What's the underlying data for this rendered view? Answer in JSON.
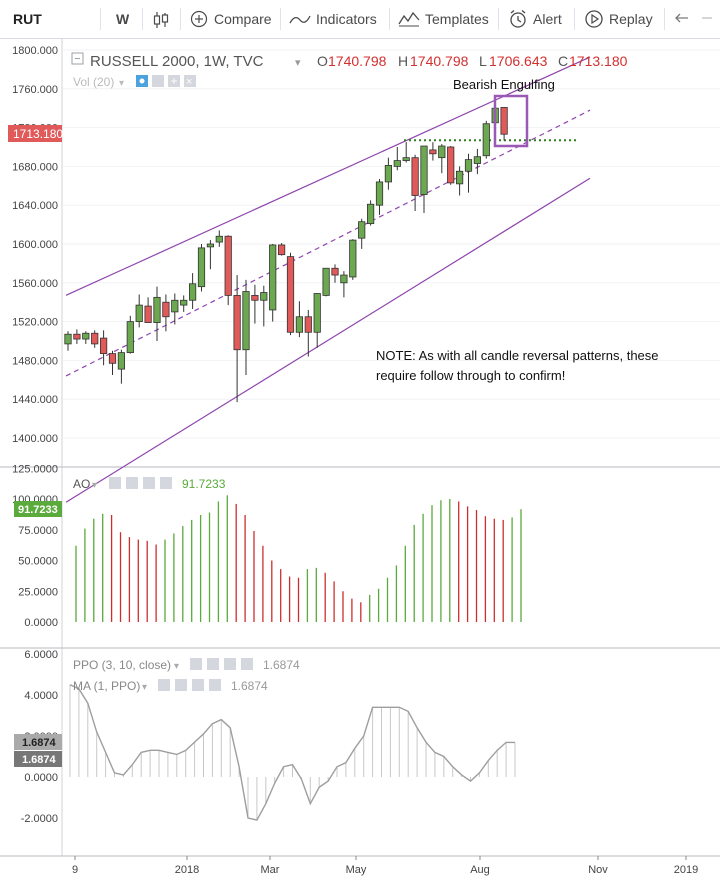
{
  "toolbar": {
    "symbol": "RUT",
    "interval": "W",
    "compare": "Compare",
    "indicators": "Indicators",
    "templates": "Templates",
    "alert": "Alert",
    "replay": "Replay"
  },
  "legend": {
    "title": "RUSSELL 2000, 1W, TVC",
    "o_label": "O",
    "o_value": "1740.798",
    "h_label": "H",
    "h_value": "1740.798",
    "l_label": "L",
    "l_value": "1706.643",
    "c_label": "C",
    "c_value": "1713.180",
    "vol": "Vol (20)"
  },
  "price_tag": "1713.180",
  "annotations": {
    "pattern": "Bearish Engulfing",
    "note_line1": "NOTE: As with all candle reversal patterns, these",
    "note_line2": "require follow through to confirm!"
  },
  "ao": {
    "label": "AO",
    "value": "91.7233",
    "tag": "91.7233"
  },
  "ppo": {
    "label": "PPO (3, 10, close)",
    "value": "1.6874",
    "ma_label": "MA (1, PPO)",
    "ma_value": "1.6874",
    "tag1": "1.6874",
    "tag2": "1.6874"
  },
  "colors": {
    "up": "#6ba84f",
    "down": "#e05a5a",
    "channel": "#8e44ad",
    "ao_up": "#5aaa3c",
    "ao_down": "#cc2e2e",
    "ppo_line": "#9e9e9e",
    "highlight": "#9b59b6",
    "support": "#2e7d1f"
  },
  "chart_data": [
    {
      "type": "candlestick",
      "title": "RUSSELL 2000, 1W, TVC",
      "ylim": [
        1380,
        1800
      ],
      "yticks": [
        "1800.000",
        "1760.000",
        "1720.000",
        "1680.000",
        "1640.000",
        "1600.000",
        "1560.000",
        "1520.000",
        "1480.000",
        "1440.000",
        "1400.000"
      ],
      "xticks": [
        "9",
        "2018",
        "Mar",
        "May",
        "Aug",
        "Nov",
        "2019"
      ],
      "candles": [
        [
          1497,
          1510,
          1490,
          1507
        ],
        [
          1507,
          1512,
          1497,
          1502
        ],
        [
          1502,
          1510,
          1497,
          1508
        ],
        [
          1508,
          1511,
          1493,
          1497
        ],
        [
          1503,
          1511,
          1475,
          1487
        ],
        [
          1487,
          1490,
          1465,
          1477
        ],
        [
          1471,
          1491,
          1456,
          1488
        ],
        [
          1488,
          1526,
          1487,
          1520
        ],
        [
          1520,
          1548,
          1514,
          1537
        ],
        [
          1536,
          1545,
          1519,
          1519
        ],
        [
          1519,
          1556,
          1500,
          1545
        ],
        [
          1540,
          1548,
          1510,
          1525
        ],
        [
          1530,
          1549,
          1517,
          1542
        ],
        [
          1537,
          1547,
          1530,
          1542
        ],
        [
          1542,
          1570,
          1533,
          1559
        ],
        [
          1556,
          1600,
          1551,
          1596
        ],
        [
          1597,
          1604,
          1574,
          1600
        ],
        [
          1602,
          1614,
          1597,
          1608
        ],
        [
          1608,
          1609,
          1537,
          1547
        ],
        [
          1547,
          1568,
          1437,
          1491
        ],
        [
          1491,
          1563,
          1465,
          1551
        ],
        [
          1547,
          1558,
          1518,
          1542
        ],
        [
          1542,
          1557,
          1515,
          1550
        ],
        [
          1532,
          1600,
          1520,
          1599
        ],
        [
          1599,
          1601,
          1588,
          1589
        ],
        [
          1587,
          1591,
          1506,
          1509
        ],
        [
          1509,
          1541,
          1504,
          1525
        ],
        [
          1525,
          1532,
          1484,
          1509
        ],
        [
          1509,
          1549,
          1493,
          1549
        ],
        [
          1547,
          1572,
          1546,
          1575
        ],
        [
          1575,
          1579,
          1560,
          1568
        ],
        [
          1560,
          1572,
          1545,
          1568
        ],
        [
          1566,
          1605,
          1563,
          1604
        ],
        [
          1606,
          1626,
          1595,
          1623
        ],
        [
          1621,
          1645,
          1619,
          1641
        ],
        [
          1640,
          1667,
          1630,
          1664
        ],
        [
          1664,
          1689,
          1656,
          1681
        ],
        [
          1680,
          1700,
          1676,
          1686
        ],
        [
          1686,
          1705,
          1684,
          1689
        ],
        [
          1689,
          1692,
          1634,
          1650
        ],
        [
          1651,
          1701,
          1632,
          1701
        ],
        [
          1697,
          1705,
          1686,
          1693
        ],
        [
          1689,
          1703,
          1673,
          1701
        ],
        [
          1700,
          1701,
          1661,
          1663
        ],
        [
          1662,
          1680,
          1650,
          1675
        ],
        [
          1675,
          1693,
          1653,
          1687
        ],
        [
          1683,
          1698,
          1672,
          1690
        ],
        [
          1691,
          1727,
          1688,
          1724
        ],
        [
          1725,
          1742,
          1717,
          1740
        ],
        [
          1740.798,
          1740.798,
          1706.643,
          1713.18
        ]
      ],
      "channel_upper": [
        [
          0,
          1548
        ],
        [
          52,
          1765
        ]
      ],
      "channel_mid": [
        [
          0,
          1465
        ],
        [
          52,
          1707
        ]
      ],
      "channel_lower": [
        [
          0,
          1335
        ],
        [
          52,
          1630
        ]
      ],
      "support_level": 1707
    },
    {
      "type": "bar",
      "title": "AO",
      "ylim": [
        0,
        125
      ],
      "yticks": [
        "125.0000",
        "100.0000",
        "75.0000",
        "50.0000",
        "25.0000",
        "0.0000"
      ],
      "values": [
        62,
        76,
        84,
        88,
        87,
        73,
        69,
        67,
        66,
        63,
        67,
        72,
        78,
        83,
        87,
        89,
        98,
        103,
        96,
        87,
        74,
        62,
        50,
        43,
        37,
        36,
        43,
        44,
        40,
        33,
        25,
        19,
        16,
        22,
        27,
        36,
        46,
        62,
        79,
        88,
        95,
        99,
        100,
        98,
        94,
        91,
        86,
        84,
        83,
        85,
        91.72
      ]
    },
    {
      "type": "bar",
      "title": "PPO (3, 10, close)",
      "ylim": [
        -3,
        6
      ],
      "yticks": [
        "6.0000",
        "4.0000",
        "2.0000",
        "0.0000",
        "-2.0000"
      ],
      "values": [
        4.5,
        4.3,
        3.6,
        2.2,
        1.2,
        0.2,
        0.1,
        0.6,
        1.2,
        1.3,
        1.3,
        1.2,
        1.1,
        1.3,
        1.7,
        2.1,
        2.6,
        2.8,
        2.4,
        0.5,
        -2.0,
        -2.1,
        -1.3,
        -0.3,
        0.5,
        0.6,
        -0.1,
        -1.3,
        -0.5,
        -0.2,
        0.5,
        0.7,
        1.4,
        2.0,
        3.4,
        3.4,
        3.4,
        3.4,
        3.2,
        2.4,
        1.7,
        1.2,
        1.0,
        0.5,
        0.1,
        -0.2,
        0.2,
        0.8,
        1.3,
        1.6874,
        1.6874
      ]
    }
  ]
}
